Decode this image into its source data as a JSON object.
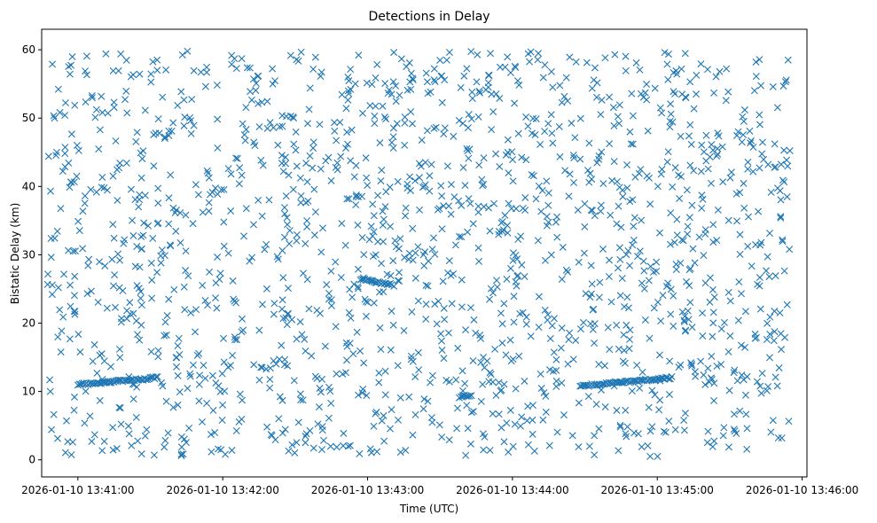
{
  "chart_data": {
    "type": "scatter",
    "title": "Detections in Delay",
    "xlabel": "Time (UTC)",
    "ylabel": "Bistatic Delay (km)",
    "marker": "x",
    "color": "#1f77b4",
    "grid": false,
    "legend": "none",
    "xlim": [
      "2026-01-10 13:40:45",
      "2026-01-10 13:46:02"
    ],
    "ylim": [
      -2.5,
      63
    ],
    "xticks": [
      "2026-01-10 13:41:00",
      "2026-01-10 13:42:00",
      "2026-01-10 13:43:00",
      "2026-01-10 13:44:00",
      "2026-01-10 13:45:00",
      "2026-01-10 13:46:00"
    ],
    "yticks": [
      0,
      10,
      20,
      30,
      40,
      50,
      60
    ],
    "series": [
      {
        "points_approx": 1800,
        "time_range": [
          "2026-01-10 13:40:47",
          "2026-01-10 13:45:55"
        ],
        "delay_range": [
          0.5,
          59.8
        ],
        "tracks": [
          {
            "start": "2026-01-10 13:41:00",
            "end": "2026-01-10 13:41:33",
            "delay_start": 11.0,
            "delay_end": 12.0
          },
          {
            "start": "2026-01-10 13:42:57",
            "end": "2026-01-10 13:43:10",
            "delay_start": 26.5,
            "delay_end": 25.6
          },
          {
            "start": "2026-01-10 13:43:38",
            "end": "2026-01-10 13:43:43",
            "delay_start": 9.2,
            "delay_end": 9.5
          },
          {
            "start": "2026-01-10 13:44:28",
            "end": "2026-01-10 13:45:06",
            "delay_start": 10.8,
            "delay_end": 12.0
          }
        ]
      }
    ]
  }
}
